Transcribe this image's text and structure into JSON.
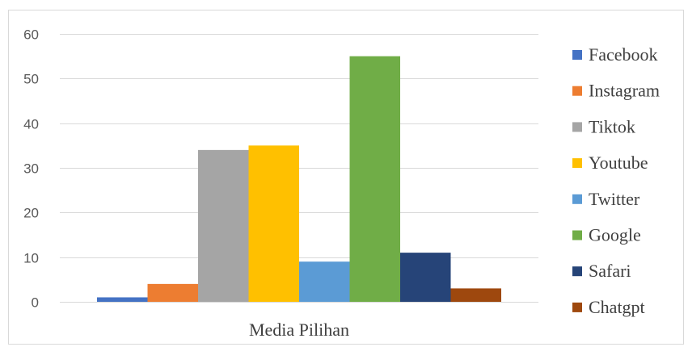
{
  "chart_data": {
    "type": "bar",
    "categories": [
      "Media Pilihan"
    ],
    "series": [
      {
        "name": "Facebook",
        "values": [
          1
        ],
        "color": "#4472C4"
      },
      {
        "name": "Instagram",
        "values": [
          4
        ],
        "color": "#ED7D31"
      },
      {
        "name": "Tiktok",
        "values": [
          34
        ],
        "color": "#A5A5A5"
      },
      {
        "name": "Youtube",
        "values": [
          35
        ],
        "color": "#FFC000"
      },
      {
        "name": "Twitter",
        "values": [
          9
        ],
        "color": "#5B9BD5"
      },
      {
        "name": "Google",
        "values": [
          55
        ],
        "color": "#70AD47"
      },
      {
        "name": "Safari",
        "values": [
          11
        ],
        "color": "#264478"
      },
      {
        "name": "Chatgpt",
        "values": [
          3
        ],
        "color": "#9E480E"
      }
    ],
    "title": "",
    "xlabel": "",
    "ylabel": "",
    "ylim": [
      0,
      60
    ],
    "y_ticks": [
      "0",
      "10",
      "20",
      "30",
      "40",
      "50",
      "60"
    ],
    "grid": true,
    "legend_position": "right"
  }
}
